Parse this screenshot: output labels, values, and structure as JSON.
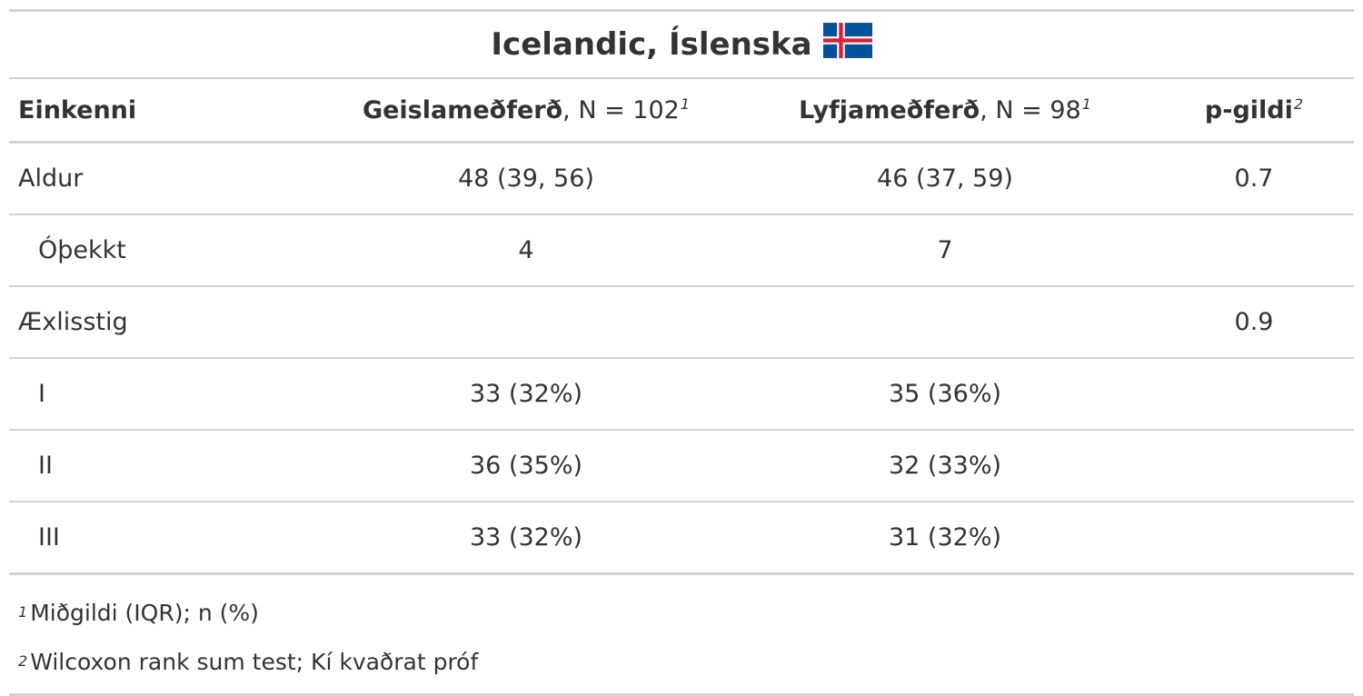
{
  "table": {
    "title": "Icelandic, Íslenska",
    "flag_icon": "iceland-flag-icon",
    "flag_colors": {
      "blue": "#02529C",
      "white": "#FFFFFF",
      "red": "#DC1E35"
    },
    "header": {
      "characteristic": "Einkenni",
      "group1_name": "Geislameðferð",
      "group1_n": ", N = 102",
      "group1_sup": "1",
      "group2_name": "Lyfjameðferð",
      "group2_n": ", N = 98",
      "group2_sup": "1",
      "pvalue": "p-gildi",
      "pvalue_sup": "2"
    },
    "rows": [
      {
        "label": "Aldur",
        "g1": "48 (39, 56)",
        "g2": "46 (37, 59)",
        "p": "0.7"
      },
      {
        "label": "Óþekkt",
        "g1": "4",
        "g2": "7",
        "p": ""
      },
      {
        "label": "Æxlisstig",
        "g1": "",
        "g2": "",
        "p": "0.9"
      },
      {
        "label": "I",
        "g1": "33 (32%)",
        "g2": "35 (36%)",
        "p": ""
      },
      {
        "label": "II",
        "g1": "36 (35%)",
        "g2": "32 (33%)",
        "p": ""
      },
      {
        "label": "III",
        "g1": "33 (32%)",
        "g2": "31 (32%)",
        "p": ""
      }
    ],
    "footnotes": [
      {
        "mark": "1",
        "text": "Miðgildi (IQR); n (%)"
      },
      {
        "mark": "2",
        "text": "Wilcoxon rank sum test; Kí kvaðrat próf"
      }
    ]
  }
}
